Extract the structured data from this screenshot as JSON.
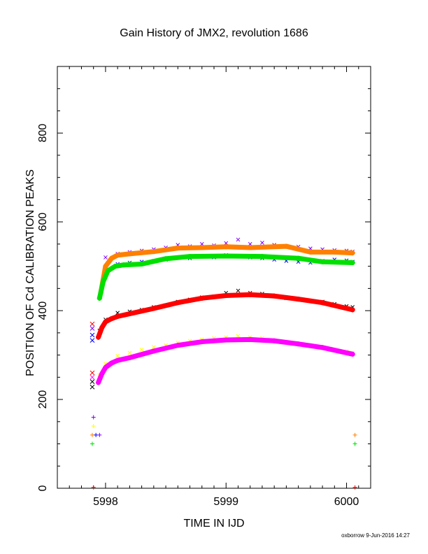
{
  "chart_data": {
    "type": "scatter",
    "title": "Gain History of JMX2, revolution 1686",
    "xlabel": "TIME IN IJD",
    "ylabel": "POSITION OF Cd CALIBRATION PEAKS",
    "footer": "oxborrow  9-Jun-2016 14:27",
    "xlim": [
      5997.6,
      6000.2
    ],
    "ylim": [
      0,
      950
    ],
    "x_ticks": [
      5998,
      5999,
      6000
    ],
    "x_tick_labels": [
      "5998",
      "5999",
      "6000"
    ],
    "y_ticks": [
      0,
      200,
      400,
      600,
      800
    ],
    "y_tick_labels": [
      "0",
      "200",
      "400",
      "600",
      "800"
    ],
    "grid": false,
    "legend": "none",
    "series": [
      {
        "color": "#ff8000",
        "marker": "+",
        "role": "fit",
        "x": [
          5997.96,
          5998.0,
          5998.05,
          5998.1,
          5998.2,
          5998.4,
          5998.6,
          5998.8,
          5999.0,
          5999.2,
          5999.5,
          5999.7,
          5999.9,
          6000.05
        ],
        "y": [
          440,
          500,
          518,
          525,
          528,
          533,
          541,
          542,
          544,
          542,
          545,
          532,
          532,
          530
        ]
      },
      {
        "color": "#00e000",
        "marker": "+",
        "role": "fit",
        "x": [
          5997.95,
          5997.98,
          5998.02,
          5998.08,
          5998.15,
          5998.3,
          5998.5,
          5998.7,
          5999.0,
          5999.3,
          5999.6,
          5999.8,
          6000.05
        ],
        "y": [
          428,
          465,
          490,
          500,
          503,
          505,
          517,
          522,
          523,
          522,
          518,
          510,
          508
        ]
      },
      {
        "color": "#ff0000",
        "marker": "+",
        "role": "fit",
        "x": [
          5997.94,
          5997.97,
          5998.0,
          5998.05,
          5998.1,
          5998.2,
          5998.4,
          5998.6,
          5998.8,
          5999.0,
          5999.2,
          5999.4,
          5999.6,
          5999.8,
          6000.05
        ],
        "y": [
          340,
          362,
          375,
          382,
          387,
          393,
          405,
          418,
          428,
          434,
          436,
          433,
          426,
          418,
          402
        ]
      },
      {
        "color": "#ff00ff",
        "marker": "+",
        "role": "fit",
        "x": [
          5997.94,
          5997.97,
          5998.0,
          5998.05,
          5998.1,
          5998.2,
          5998.4,
          5998.6,
          5998.8,
          5999.0,
          5999.2,
          5999.4,
          5999.6,
          5999.8,
          6000.05
        ],
        "y": [
          238,
          258,
          272,
          282,
          288,
          294,
          309,
          322,
          330,
          334,
          335,
          332,
          325,
          317,
          302
        ]
      },
      {
        "color": "#8000ff",
        "marker": "x",
        "role": "data",
        "x": [
          5998.0,
          5998.1,
          5998.2,
          5998.3,
          5998.4,
          5998.5,
          5998.6,
          5998.7,
          5998.8,
          5998.9,
          5999.0,
          5999.1,
          5999.2,
          5999.3,
          5999.4,
          5999.5,
          5999.6,
          5999.7,
          5999.8,
          5999.9,
          6000.0,
          6000.05
        ],
        "y": [
          520,
          528,
          532,
          535,
          538,
          542,
          548,
          545,
          550,
          547,
          552,
          560,
          550,
          553,
          548,
          545,
          544,
          540,
          538,
          536,
          535,
          533
        ]
      },
      {
        "color": "#0000ff",
        "marker": "x",
        "role": "data",
        "x": [
          5998.0,
          5998.1,
          5998.2,
          5998.3,
          5998.4,
          5998.5,
          5998.6,
          5998.7,
          5998.8,
          5998.9,
          5999.0,
          5999.1,
          5999.2,
          5999.3,
          5999.4,
          5999.5,
          5999.6,
          5999.7,
          5999.8,
          5999.9,
          6000.0,
          6000.05
        ],
        "y": [
          495,
          505,
          508,
          510,
          512,
          515,
          520,
          518,
          522,
          520,
          525,
          522,
          520,
          518,
          515,
          512,
          510,
          508,
          512,
          515,
          513,
          510
        ]
      },
      {
        "color": "#000000",
        "marker": "x",
        "role": "data",
        "x": [
          5997.95,
          5998.0,
          5998.1,
          5998.2,
          5998.3,
          5998.4,
          5998.5,
          5998.6,
          5998.7,
          5998.8,
          5998.9,
          5999.0,
          5999.1,
          5999.2,
          5999.3,
          5999.4,
          5999.5,
          5999.6,
          5999.7,
          5999.8,
          5999.9,
          6000.0,
          6000.05
        ],
        "y": [
          355,
          380,
          395,
          398,
          402,
          408,
          412,
          420,
          425,
          430,
          432,
          440,
          445,
          440,
          438,
          432,
          428,
          425,
          422,
          420,
          415,
          410,
          408
        ]
      },
      {
        "color": "#ffff00",
        "marker": "x",
        "role": "data",
        "x": [
          5997.95,
          5998.0,
          5998.1,
          5998.2,
          5998.3,
          5998.4,
          5998.5,
          5998.6,
          5998.7,
          5998.8,
          5998.9,
          5999.0,
          5999.1,
          5999.2,
          5999.3,
          5999.4,
          5999.5,
          5999.6,
          5999.7,
          5999.8,
          5999.9,
          6000.0,
          6000.05
        ],
        "y": [
          255,
          280,
          298,
          305,
          312,
          318,
          322,
          328,
          332,
          335,
          338,
          340,
          343,
          340,
          338,
          333,
          328,
          325,
          320,
          315,
          312,
          308,
          305
        ]
      }
    ],
    "outliers": [
      {
        "x": 5997.89,
        "y": 370,
        "color": "#ff0000",
        "marker": "x"
      },
      {
        "x": 5997.89,
        "y": 360,
        "color": "#8000ff",
        "marker": "x"
      },
      {
        "x": 5997.89,
        "y": 345,
        "color": "#0000ff",
        "marker": "x"
      },
      {
        "x": 5997.89,
        "y": 333,
        "color": "#0000ff",
        "marker": "x"
      },
      {
        "x": 5997.89,
        "y": 260,
        "color": "#ff0000",
        "marker": "x"
      },
      {
        "x": 5997.89,
        "y": 250,
        "color": "#ff00ff",
        "marker": "x"
      },
      {
        "x": 5997.89,
        "y": 240,
        "color": "#000000",
        "marker": "x"
      },
      {
        "x": 5997.89,
        "y": 228,
        "color": "#000000",
        "marker": "x"
      },
      {
        "x": 5997.9,
        "y": 160,
        "color": "#8000ff",
        "marker": "+"
      },
      {
        "x": 5997.9,
        "y": 140,
        "color": "#ffff00",
        "marker": "+"
      },
      {
        "x": 5997.89,
        "y": 120,
        "color": "#ff8000",
        "marker": "+"
      },
      {
        "x": 5997.92,
        "y": 120,
        "color": "#0000ff",
        "marker": "+"
      },
      {
        "x": 5997.95,
        "y": 120,
        "color": "#8000ff",
        "marker": "+"
      },
      {
        "x": 5997.89,
        "y": 100,
        "color": "#00e000",
        "marker": "+"
      },
      {
        "x": 5997.9,
        "y": 2,
        "color": "#ff0000",
        "marker": "+"
      },
      {
        "x": 6000.07,
        "y": 120,
        "color": "#ff8000",
        "marker": "+"
      },
      {
        "x": 6000.07,
        "y": 100,
        "color": "#00e000",
        "marker": "+"
      },
      {
        "x": 6000.07,
        "y": 2,
        "color": "#ff0000",
        "marker": "+"
      }
    ]
  }
}
